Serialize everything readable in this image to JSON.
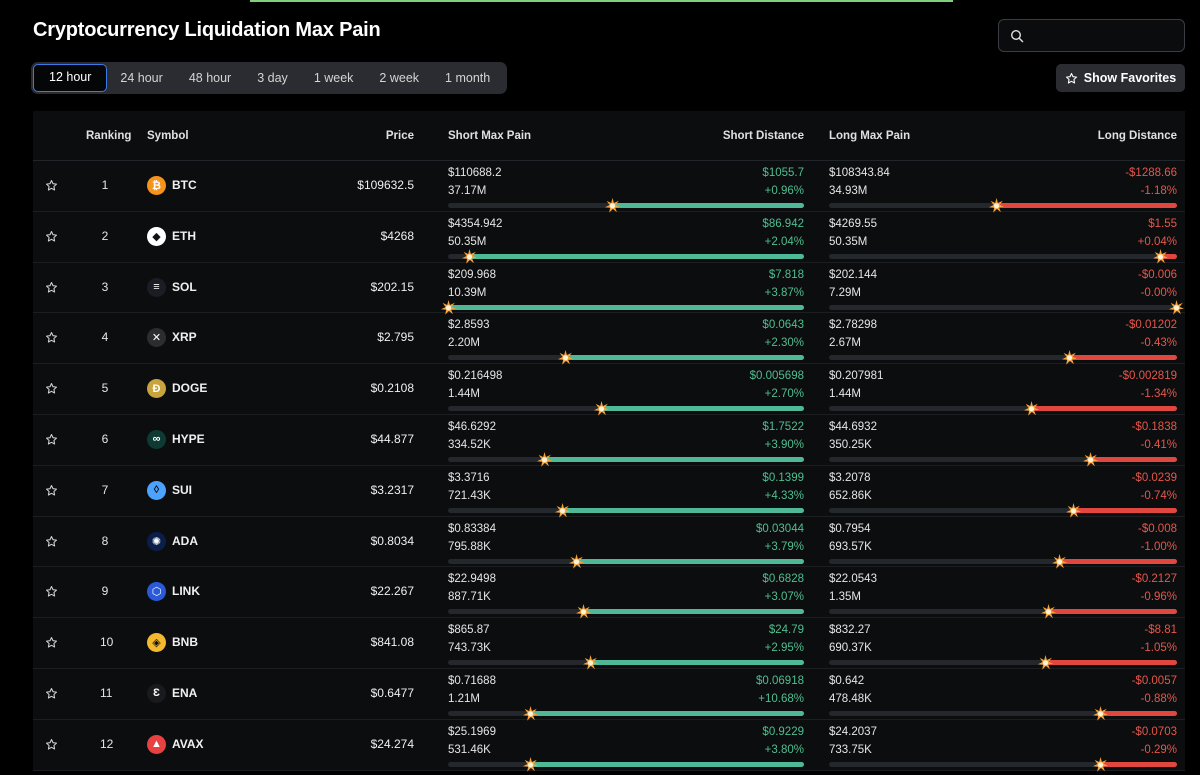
{
  "page": {
    "title": "Cryptocurrency Liquidation Max Pain",
    "search_placeholder": "",
    "favorites_label": "Show Favorites"
  },
  "tabs": [
    {
      "label": "12 hour",
      "active": true
    },
    {
      "label": "24 hour",
      "active": false
    },
    {
      "label": "48 hour",
      "active": false
    },
    {
      "label": "3 day",
      "active": false
    },
    {
      "label": "1 week",
      "active": false
    },
    {
      "label": "2 week",
      "active": false
    },
    {
      "label": "1 month",
      "active": false
    }
  ],
  "columns": {
    "ranking": "Ranking",
    "symbol": "Symbol",
    "price": "Price",
    "short_max_pain": "Short Max Pain",
    "short_distance": "Short Distance",
    "long_max_pain": "Long Max Pain",
    "long_distance": "Long Distance"
  },
  "colors": {
    "short": "#4fb896",
    "long": "#e0473f",
    "accent": "#3c7ae6"
  },
  "rows": [
    {
      "rank": "1",
      "symbol": "BTC",
      "icon": "bitcoin-icon",
      "icon_color": "#f7931a",
      "icon_glyph": "₿",
      "price": "$109632.5",
      "short_price": "$110688.2",
      "short_vol": "37.17M",
      "short_dist": "$1055.7",
      "short_pct": "+0.96%",
      "long_price": "$108343.84",
      "long_vol": "34.93M",
      "long_dist": "-$1288.66",
      "long_pct": "-1.18%",
      "short_fill": 0.54,
      "long_fill": 0.52
    },
    {
      "rank": "2",
      "symbol": "ETH",
      "icon": "ethereum-icon",
      "icon_color": "#ffffff",
      "icon_glyph": "◆",
      "price": "$4268",
      "short_price": "$4354.942",
      "short_vol": "50.35M",
      "short_dist": "$86.942",
      "short_pct": "+2.04%",
      "long_price": "$4269.55",
      "long_vol": "50.35M",
      "long_dist": "$1.55",
      "long_pct": "+0.04%",
      "short_fill": 0.94,
      "long_fill": 0.05
    },
    {
      "rank": "3",
      "symbol": "SOL",
      "icon": "solana-icon",
      "icon_color": "#1c1c24",
      "icon_glyph": "≡",
      "price": "$202.15",
      "short_price": "$209.968",
      "short_vol": "10.39M",
      "short_dist": "$7.818",
      "short_pct": "+3.87%",
      "long_price": "$202.144",
      "long_vol": "7.29M",
      "long_dist": "-$0.006",
      "long_pct": "-0.00%",
      "short_fill": 1.0,
      "long_fill": 0.0
    },
    {
      "rank": "4",
      "symbol": "XRP",
      "icon": "xrp-icon",
      "icon_color": "#2b2d31",
      "icon_glyph": "✕",
      "price": "$2.795",
      "short_price": "$2.8593",
      "short_vol": "2.20M",
      "short_dist": "$0.0643",
      "short_pct": "+2.30%",
      "long_price": "$2.78298",
      "long_vol": "2.67M",
      "long_dist": "-$0.01202",
      "long_pct": "-0.43%",
      "short_fill": 0.67,
      "long_fill": 0.31
    },
    {
      "rank": "5",
      "symbol": "DOGE",
      "icon": "dogecoin-icon",
      "icon_color": "#c9a33b",
      "icon_glyph": "Ð",
      "price": "$0.2108",
      "short_price": "$0.216498",
      "short_vol": "1.44M",
      "short_dist": "$0.005698",
      "short_pct": "+2.70%",
      "long_price": "$0.207981",
      "long_vol": "1.44M",
      "long_dist": "-$0.002819",
      "long_pct": "-1.34%",
      "short_fill": 0.57,
      "long_fill": 0.42
    },
    {
      "rank": "6",
      "symbol": "HYPE",
      "icon": "hyperliquid-icon",
      "icon_color": "#0d3b33",
      "icon_glyph": "∞",
      "price": "$44.877",
      "short_price": "$46.6292",
      "short_vol": "334.52K",
      "short_dist": "$1.7522",
      "short_pct": "+3.90%",
      "long_price": "$44.6932",
      "long_vol": "350.25K",
      "long_dist": "-$0.1838",
      "long_pct": "-0.41%",
      "short_fill": 0.73,
      "long_fill": 0.25
    },
    {
      "rank": "7",
      "symbol": "SUI",
      "icon": "sui-icon",
      "icon_color": "#4ca3ff",
      "icon_glyph": "◊",
      "price": "$3.2317",
      "short_price": "$3.3716",
      "short_vol": "721.43K",
      "short_dist": "$0.1399",
      "short_pct": "+4.33%",
      "long_price": "$3.2078",
      "long_vol": "652.86K",
      "long_dist": "-$0.0239",
      "long_pct": "-0.74%",
      "short_fill": 0.68,
      "long_fill": 0.3
    },
    {
      "rank": "8",
      "symbol": "ADA",
      "icon": "cardano-icon",
      "icon_color": "#0b1e4a",
      "icon_glyph": "✺",
      "price": "$0.8034",
      "short_price": "$0.83384",
      "short_vol": "795.88K",
      "short_dist": "$0.03044",
      "short_pct": "+3.79%",
      "long_price": "$0.7954",
      "long_vol": "693.57K",
      "long_dist": "-$0.008",
      "long_pct": "-1.00%",
      "short_fill": 0.64,
      "long_fill": 0.34
    },
    {
      "rank": "9",
      "symbol": "LINK",
      "icon": "chainlink-icon",
      "icon_color": "#2a5ada",
      "icon_glyph": "⬡",
      "price": "$22.267",
      "short_price": "$22.9498",
      "short_vol": "887.71K",
      "short_dist": "$0.6828",
      "short_pct": "+3.07%",
      "long_price": "$22.0543",
      "long_vol": "1.35M",
      "long_dist": "-$0.2127",
      "long_pct": "-0.96%",
      "short_fill": 0.62,
      "long_fill": 0.37
    },
    {
      "rank": "10",
      "symbol": "BNB",
      "icon": "bnb-icon",
      "icon_color": "#f3ba2f",
      "icon_glyph": "◈",
      "price": "$841.08",
      "short_price": "$865.87",
      "short_vol": "743.73K",
      "short_dist": "$24.79",
      "short_pct": "+2.95%",
      "long_price": "$832.27",
      "long_vol": "690.37K",
      "long_dist": "-$8.81",
      "long_pct": "-1.05%",
      "short_fill": 0.6,
      "long_fill": 0.38
    },
    {
      "rank": "11",
      "symbol": "ENA",
      "icon": "ethena-icon",
      "icon_color": "#1a1a1e",
      "icon_glyph": "Ɛ",
      "price": "$0.6477",
      "short_price": "$0.71688",
      "short_vol": "1.21M",
      "short_dist": "$0.06918",
      "short_pct": "+10.68%",
      "long_price": "$0.642",
      "long_vol": "478.48K",
      "long_dist": "-$0.0057",
      "long_pct": "-0.88%",
      "short_fill": 0.77,
      "long_fill": 0.22
    },
    {
      "rank": "12",
      "symbol": "AVAX",
      "icon": "avalanche-icon",
      "icon_color": "#e84142",
      "icon_glyph": "▲",
      "price": "$24.274",
      "short_price": "$25.1969",
      "short_vol": "531.46K",
      "short_dist": "$0.9229",
      "short_pct": "+3.80%",
      "long_price": "$24.2037",
      "long_vol": "733.75K",
      "long_dist": "-$0.0703",
      "long_pct": "-0.29%",
      "short_fill": 0.77,
      "long_fill": 0.22
    }
  ]
}
